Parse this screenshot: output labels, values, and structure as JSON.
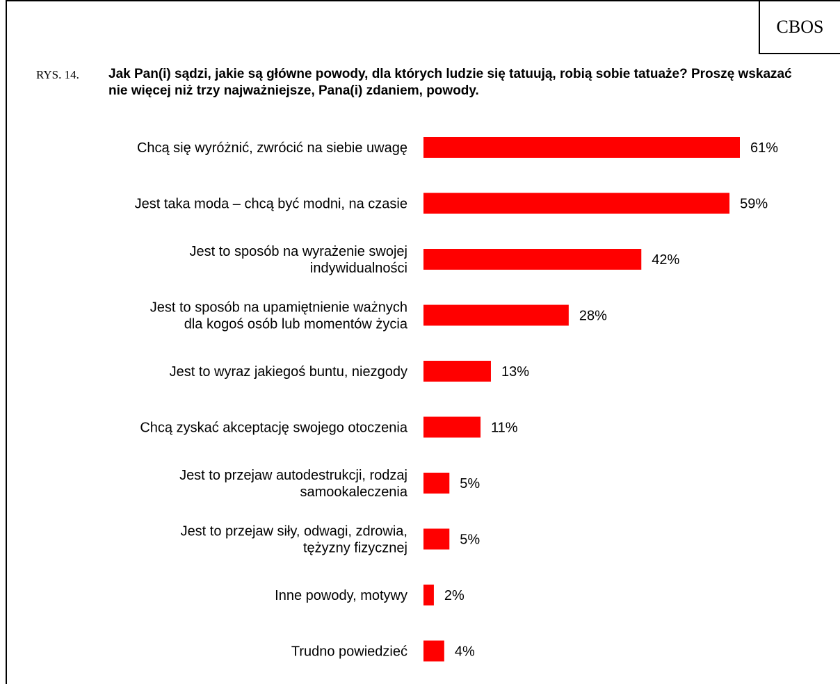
{
  "org": "CBOS",
  "figure_label": "RYS. 14.",
  "chart_data": {
    "type": "bar",
    "orientation": "horizontal",
    "title": "Jak Pan(i) sądzi, jakie są główne powody, dla których ludzie się tatuują, robią sobie tatuaże? Proszę wskazać nie więcej niż trzy najważniejsze, Pana(i) zdaniem, powody.",
    "categories": [
      [
        "Chcą się wyróżnić, zwrócić na siebie uwagę"
      ],
      [
        "Jest taka moda – chcą być modni, na czasie"
      ],
      [
        "Jest to sposób na wyrażenie swojej",
        "indywidualności"
      ],
      [
        "Jest to sposób na upamiętnienie ważnych",
        "dla kogoś osób lub momentów życia"
      ],
      [
        "Jest to wyraz jakiegoś buntu, niezgody"
      ],
      [
        "Chcą zyskać akceptację swojego otoczenia"
      ],
      [
        "Jest to przejaw autodestrukcji, rodzaj",
        "samookaleczenia"
      ],
      [
        "Jest to przejaw siły, odwagi, zdrowia,",
        "tężyzny fizycznej"
      ],
      [
        "Inne powody, motywy"
      ],
      [
        "Trudno powiedzieć"
      ]
    ],
    "values": [
      61,
      59,
      42,
      28,
      13,
      11,
      5,
      5,
      2,
      4
    ],
    "value_labels": [
      "61%",
      "59%",
      "42%",
      "28%",
      "13%",
      "11%",
      "5%",
      "5%",
      "2%",
      "4%"
    ],
    "unit": "%",
    "bar_color": "#ff0000",
    "grid": false,
    "legend": "none"
  }
}
